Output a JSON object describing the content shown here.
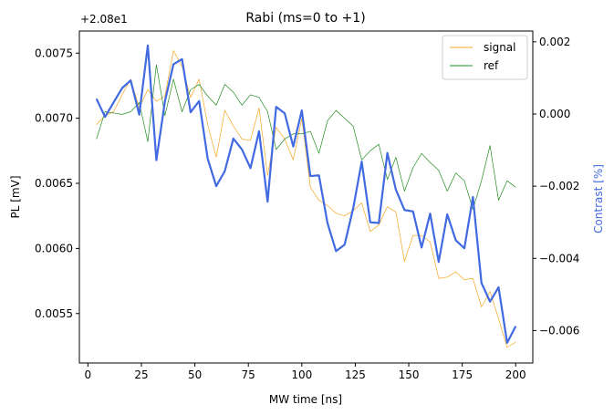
{
  "chart_data": {
    "type": "line",
    "title": "Rabi (ms=0 to +1)",
    "xlabel": "MW time [ns]",
    "ylabel_left": "PL [mV]",
    "ylabel_right": "Contrast [%]",
    "offset_text": "+2.08e1",
    "xlim": [
      -4,
      208
    ],
    "ylim_left": [
      0.00512,
      0.00767
    ],
    "ylim_right": [
      -0.0069,
      0.0023
    ],
    "x_ticks": [
      0,
      25,
      50,
      75,
      100,
      125,
      150,
      175,
      200
    ],
    "y_left_ticks": [
      0.0055,
      0.006,
      0.0065,
      0.007,
      0.0075
    ],
    "y_right_ticks": [
      -0.006,
      -0.004,
      -0.002,
      0.0,
      0.002
    ],
    "legend_position": "upper right",
    "grid": false,
    "colors": {
      "signal": "#f5a623",
      "ref": "#228b22",
      "contrast": "#4169e1"
    },
    "x": [
      4,
      8,
      12,
      16,
      20,
      24,
      28,
      32,
      36,
      40,
      44,
      48,
      52,
      56,
      60,
      64,
      68,
      72,
      76,
      80,
      84,
      88,
      92,
      96,
      100,
      104,
      108,
      112,
      116,
      120,
      124,
      128,
      132,
      136,
      140,
      144,
      148,
      152,
      156,
      160,
      164,
      168,
      172,
      176,
      180,
      184,
      188,
      192,
      196,
      200
    ],
    "series": [
      {
        "name": "signal",
        "axis": "left",
        "values": [
          0.00695,
          0.00702,
          0.00705,
          0.00718,
          0.0073,
          0.00708,
          0.00722,
          0.00713,
          0.00717,
          0.00752,
          0.0074,
          0.00716,
          0.0073,
          0.00695,
          0.0067,
          0.00706,
          0.00694,
          0.00684,
          0.00683,
          0.00708,
          0.00656,
          0.00693,
          0.00684,
          0.00668,
          0.007,
          0.00647,
          0.00637,
          0.00633,
          0.00627,
          0.00625,
          0.00629,
          0.00635,
          0.00613,
          0.00618,
          0.00632,
          0.00628,
          0.0059,
          0.0061,
          0.0061,
          0.00605,
          0.00577,
          0.00578,
          0.00582,
          0.00576,
          0.00577,
          0.00555,
          0.00567,
          0.00546,
          0.00524,
          0.00528
        ]
      },
      {
        "name": "ref",
        "axis": "left",
        "values": [
          0.00684,
          0.00705,
          0.00704,
          0.00703,
          0.00705,
          0.00712,
          0.00682,
          0.00741,
          0.00702,
          0.0073,
          0.00705,
          0.00722,
          0.00726,
          0.00717,
          0.0071,
          0.00726,
          0.0072,
          0.0071,
          0.00718,
          0.00716,
          0.00705,
          0.00676,
          0.00684,
          0.00688,
          0.00688,
          0.0069,
          0.00673,
          0.00698,
          0.00706,
          0.007,
          0.00694,
          0.00668,
          0.00675,
          0.0068,
          0.00653,
          0.0067,
          0.00644,
          0.00662,
          0.00673,
          0.00666,
          0.0066,
          0.00644,
          0.00658,
          0.00652,
          0.0063,
          0.00652,
          0.00679,
          0.00637,
          0.00652,
          0.00647
        ]
      },
      {
        "name": "",
        "axis": "right",
        "values": [
          0.00042,
          -8e-05,
          0.00032,
          0.00072,
          0.00093,
          -2e-05,
          0.0019,
          -0.00128,
          0.00035,
          0.00138,
          0.00152,
          5e-05,
          0.00036,
          -0.00124,
          -0.002,
          -0.00158,
          -0.00068,
          -0.00098,
          -0.0015,
          -0.00048,
          -0.00243,
          0.0002,
          2e-05,
          -0.0009,
          0.0001,
          -0.00172,
          -0.0017,
          -0.00302,
          -0.0038,
          -0.00362,
          -0.00262,
          -0.00132,
          -0.003,
          -0.00302,
          -0.00108,
          -0.0021,
          -0.00266,
          -0.0027,
          -0.0037,
          -0.00276,
          -0.0041,
          -0.00278,
          -0.0035,
          -0.00372,
          -0.0023,
          -0.00468,
          -0.0052,
          -0.0048,
          -0.00634,
          -0.00588
        ]
      }
    ]
  }
}
